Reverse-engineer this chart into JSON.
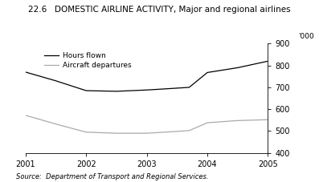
{
  "title": "22.6   DOMESTIC AIRLINE ACTIVITY, Major and regional airlines",
  "ylabel_right": "'000",
  "source": "Source:  Department of Transport and Regional Services.",
  "x": [
    2001,
    2001.5,
    2002,
    2002.5,
    2003,
    2003.3,
    2003.7,
    2004,
    2004.5,
    2005
  ],
  "hours_flown": [
    770,
    730,
    685,
    682,
    688,
    693,
    700,
    768,
    790,
    820
  ],
  "aircraft_departures": [
    572,
    532,
    495,
    490,
    490,
    495,
    502,
    538,
    548,
    552
  ],
  "hours_color": "#000000",
  "aircraft_color": "#aaaaaa",
  "ylim": [
    400,
    900
  ],
  "yticks": [
    400,
    500,
    600,
    700,
    800,
    900
  ],
  "xlim": [
    2001,
    2005
  ],
  "xticks": [
    2001,
    2002,
    2003,
    2004,
    2005
  ],
  "legend_hours": "Hours flown",
  "legend_aircraft": "Aircraft departures",
  "background": "#ffffff"
}
